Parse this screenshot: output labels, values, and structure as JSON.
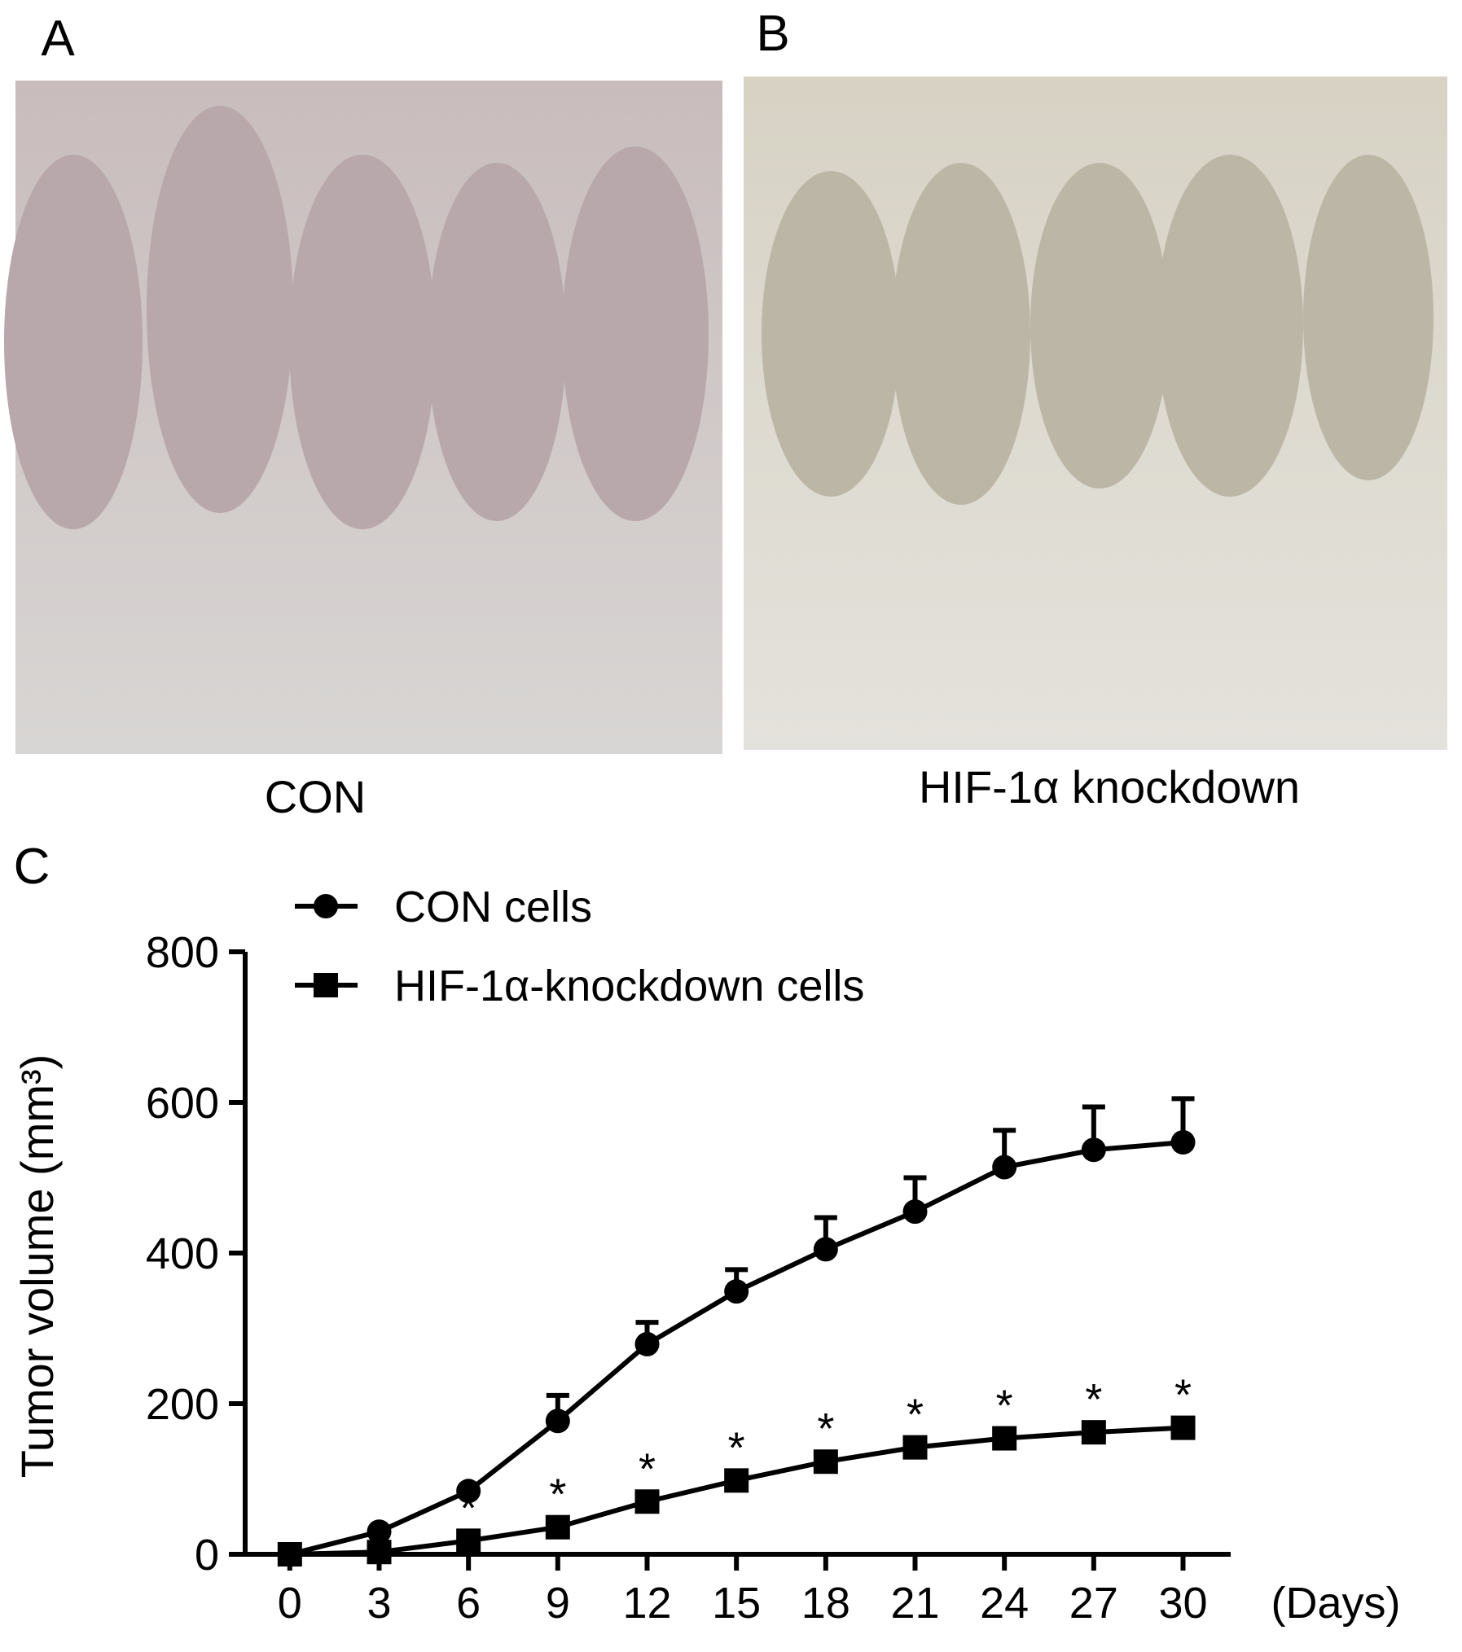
{
  "panels": [
    {
      "label": "A",
      "caption": "CON"
    },
    {
      "label": "B",
      "caption": "HIF-1α knockdown"
    },
    {
      "label": "C"
    }
  ],
  "chart_data": {
    "type": "line",
    "y_label": "Tumor volume (mm³)",
    "x_label": "(Days)",
    "x": [
      0,
      3,
      6,
      9,
      12,
      15,
      18,
      21,
      24,
      27,
      30
    ],
    "series": [
      {
        "name": "CON cells",
        "color": "#000000",
        "marker": "circle",
        "values": [
          0,
          30,
          84,
          177,
          279,
          349,
          405,
          455,
          514,
          537,
          547
        ],
        "errors": [
          0,
          0,
          0,
          34,
          29,
          29,
          42,
          45,
          49,
          57,
          58
        ]
      },
      {
        "name": "HIF-1α-knockdown cells",
        "color": "#000000",
        "marker": "square",
        "values": [
          0,
          3,
          18,
          36,
          70,
          98,
          123,
          142,
          154,
          162,
          168
        ]
      }
    ],
    "annotations": [
      {
        "x": 6,
        "text": "*"
      },
      {
        "x": 9,
        "text": "*"
      },
      {
        "x": 12,
        "text": "*"
      },
      {
        "x": 15,
        "text": "*"
      },
      {
        "x": 18,
        "text": "*"
      },
      {
        "x": 21,
        "text": "*"
      },
      {
        "x": 24,
        "text": "*"
      },
      {
        "x": 27,
        "text": "*"
      },
      {
        "x": 30,
        "text": "*"
      }
    ],
    "xlim": [
      -1.5,
      31.6
    ],
    "ylim": [
      0,
      800
    ],
    "xticks": [
      0,
      3,
      6,
      9,
      12,
      15,
      18,
      21,
      24,
      27,
      30
    ],
    "yticks": [
      0,
      200,
      400,
      600,
      800
    ],
    "grid": false,
    "legend": "top-left"
  }
}
